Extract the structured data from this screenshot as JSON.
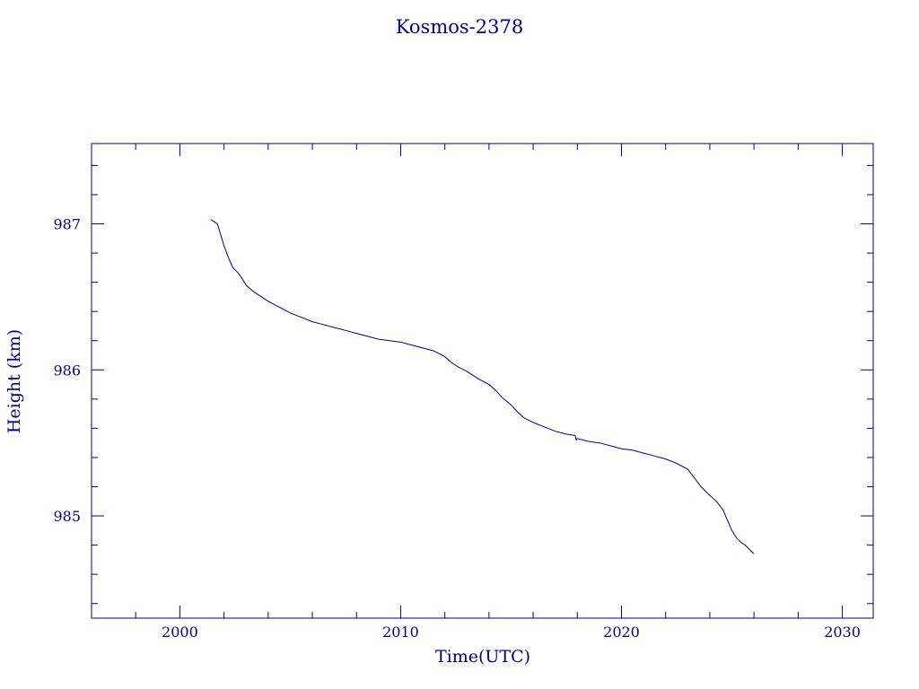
{
  "chart_data": {
    "type": "line",
    "title": "Kosmos-2378",
    "xlabel": "Time(UTC)",
    "ylabel": "Height (km)",
    "xlim": [
      1996.0,
      2031.4
    ],
    "ylim": [
      984.3,
      987.55
    ],
    "xticks": [
      2000,
      2010,
      2020,
      2030
    ],
    "xtick_labels": [
      "2000",
      "2010",
      "2020",
      "2030"
    ],
    "yticks": [
      985,
      986,
      987
    ],
    "ytick_labels": [
      "985",
      "986",
      "987"
    ],
    "grid": false,
    "color": "#00008b",
    "series": [
      {
        "x": [
          2001.4,
          2001.5,
          2001.7,
          2001.8,
          2002.0,
          2002.2,
          2002.4,
          2002.6,
          2002.8,
          2003.0,
          2003.3,
          2003.6,
          2004.0,
          2004.5,
          2005.0,
          2005.5,
          2006.0,
          2006.5,
          2007.0,
          2007.5,
          2008.0,
          2008.5,
          2009.0,
          2009.5,
          2010.0,
          2010.5,
          2011.0,
          2011.5,
          2012.0,
          2012.3,
          2012.6,
          2013.0,
          2013.5,
          2014.0,
          2014.3,
          2014.6,
          2015.0,
          2015.3,
          2015.6,
          2016.0,
          2016.5,
          2017.0,
          2017.5,
          2017.9,
          2017.95,
          2018.0,
          2018.5,
          2019.0,
          2019.5,
          2020.0,
          2020.5,
          2021.0,
          2021.5,
          2022.0,
          2022.5,
          2023.0,
          2023.3,
          2023.6,
          2024.0,
          2024.3,
          2024.6,
          2024.8,
          2025.0,
          2025.2,
          2025.4,
          2025.6,
          2025.8,
          2026.0
        ],
        "y": [
          987.03,
          987.02,
          987.0,
          986.95,
          986.85,
          986.77,
          986.7,
          986.67,
          986.63,
          986.58,
          986.54,
          986.51,
          986.47,
          986.43,
          986.39,
          986.36,
          986.33,
          986.31,
          986.29,
          986.27,
          986.25,
          986.23,
          986.21,
          986.2,
          986.19,
          986.17,
          986.15,
          986.13,
          986.09,
          986.05,
          986.02,
          985.99,
          985.94,
          985.9,
          985.86,
          985.81,
          985.76,
          985.71,
          985.67,
          985.64,
          985.61,
          985.58,
          985.56,
          985.55,
          985.52,
          985.53,
          985.51,
          985.5,
          985.48,
          985.46,
          985.45,
          985.43,
          985.41,
          985.39,
          985.36,
          985.32,
          985.26,
          985.2,
          985.14,
          985.1,
          985.04,
          984.97,
          984.9,
          984.85,
          984.82,
          984.8,
          984.77,
          984.74
        ]
      }
    ]
  }
}
